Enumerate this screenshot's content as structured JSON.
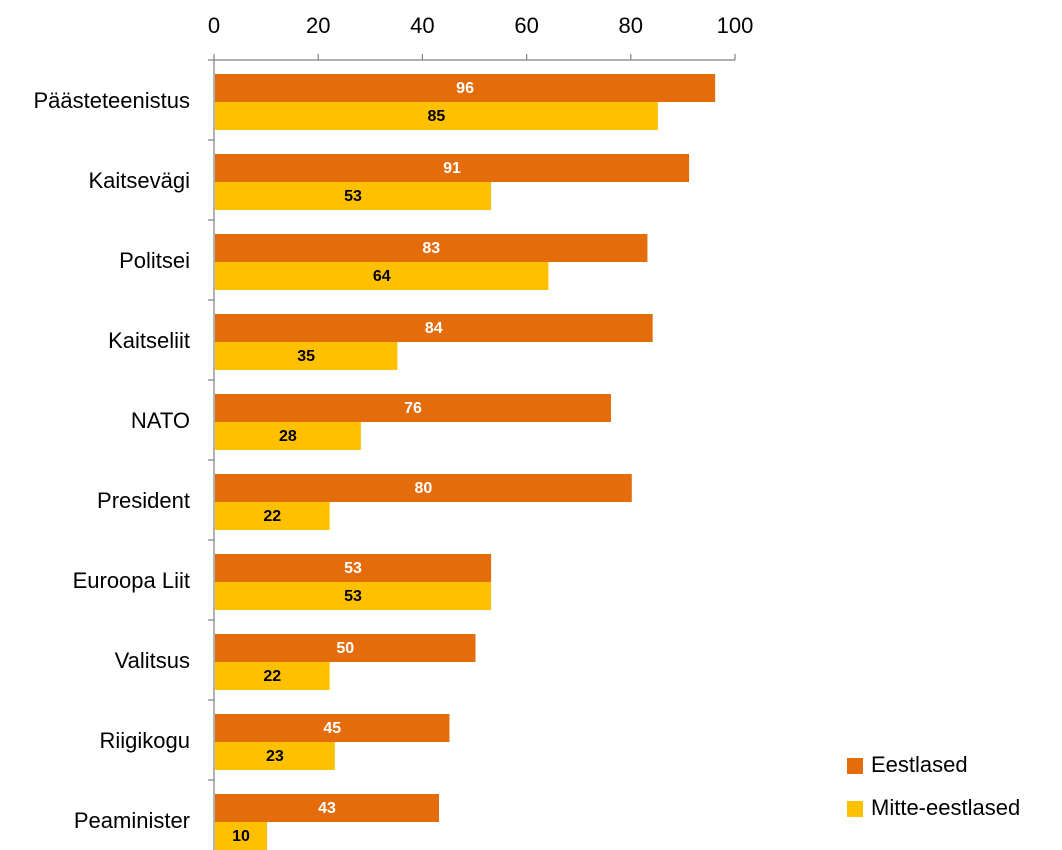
{
  "chart_data": {
    "type": "bar",
    "orientation": "horizontal",
    "categories": [
      "Päästeteenistus",
      "Kaitsevägi",
      "Politsei",
      "Kaitseliit",
      "NATO",
      "President",
      "Euroopa Liit",
      "Valitsus",
      "Riigikogu",
      "Peaminister"
    ],
    "series": [
      {
        "name": "Eestlased",
        "color": "#E46C0A",
        "label_color": "#FFFFFF",
        "values": [
          96,
          91,
          83,
          84,
          76,
          80,
          53,
          50,
          45,
          43
        ]
      },
      {
        "name": "Mitte-eestlased",
        "color": "#FFC000",
        "label_color": "#000000",
        "values": [
          85,
          53,
          64,
          35,
          28,
          22,
          53,
          22,
          23,
          10
        ]
      }
    ],
    "xlim": [
      0,
      100
    ],
    "xticks": [
      "0",
      "20",
      "40",
      "60",
      "80",
      "100"
    ],
    "x_axis_position": "top",
    "grid": false,
    "legend_position": "bottom-right",
    "title": "",
    "xlabel": "",
    "ylabel": ""
  }
}
